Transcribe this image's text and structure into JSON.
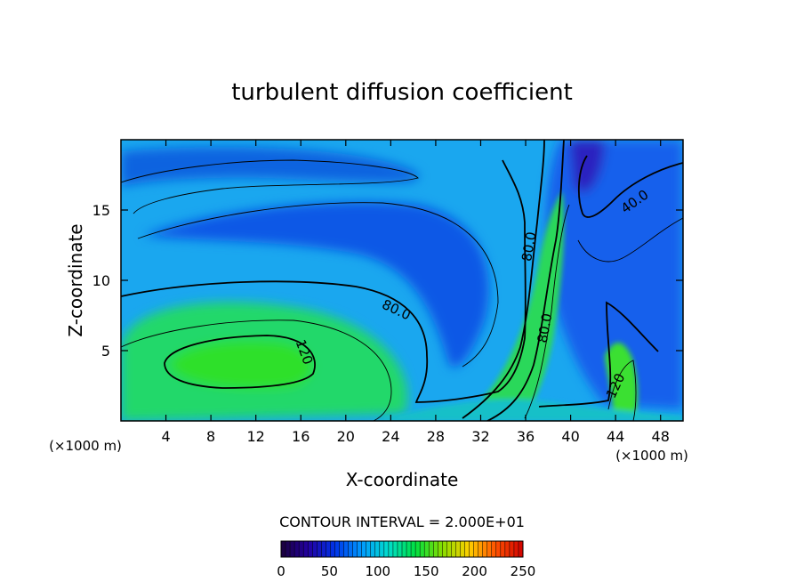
{
  "chart_data": {
    "type": "heatmap",
    "title": "turbulent diffusion coefficient",
    "xlabel": "X-coordinate",
    "ylabel": "Z-coordinate",
    "x_unit_left": "(×1000 m)",
    "x_unit_right": "(×1000 m)",
    "xlim": [
      0,
      50
    ],
    "ylim": [
      0,
      20
    ],
    "x_ticks": [
      4,
      8,
      12,
      16,
      20,
      24,
      28,
      32,
      36,
      40,
      44,
      48
    ],
    "y_ticks": [
      5,
      10,
      15
    ],
    "contour_interval_text": "CONTOUR INTERVAL = 2.000E+01",
    "contour_labels": [
      {
        "text": "80.0",
        "x": 24.5,
        "z": 7.9,
        "angle": 25
      },
      {
        "text": "120",
        "x": 16.3,
        "z": 4.9,
        "angle": 70
      },
      {
        "text": "80.0",
        "x": 36.3,
        "z": 12.4,
        "angle": -80
      },
      {
        "text": "80.0",
        "x": 37.7,
        "z": 6.6,
        "angle": -80
      },
      {
        "text": "40.0",
        "x": 45.7,
        "z": 15.6,
        "angle": -35
      },
      {
        "text": "120",
        "x": 44.0,
        "z": 2.5,
        "angle": -65
      }
    ],
    "colorbar": {
      "min": 0,
      "max": 250,
      "tick_labels": [
        "0",
        "50",
        "100",
        "150",
        "200",
        "250"
      ],
      "colors": [
        "#1a003a",
        "#2300a0",
        "#0033e8",
        "#0099ff",
        "#00ddcc",
        "#00e040",
        "#88dd00",
        "#ffd000",
        "#ff5000",
        "#d00000"
      ]
    },
    "regions": [
      {
        "name": "upper-left band",
        "value": 60
      },
      {
        "name": "blue core",
        "value": 55
      },
      {
        "name": "left green blob",
        "value": 130
      },
      {
        "name": "right blue region",
        "value": 35
      },
      {
        "name": "central plume",
        "value": 115
      },
      {
        "name": "right bottom plume",
        "value": 140
      }
    ]
  }
}
